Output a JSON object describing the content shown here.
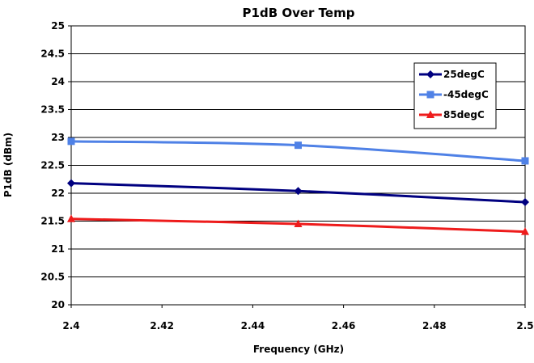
{
  "chart_data": {
    "type": "line",
    "title": "P1dB Over Temp",
    "xlabel": "Frequency (GHz)",
    "ylabel": "P1dB (dBm)",
    "xlim": [
      2.4,
      2.5
    ],
    "ylim": [
      20,
      25
    ],
    "x_ticks": [
      "2.4",
      "2.42",
      "2.44",
      "2.46",
      "2.48",
      "2.5"
    ],
    "y_ticks": [
      "20",
      "20.5",
      "21",
      "21.5",
      "22",
      "22.5",
      "23",
      "23.5",
      "24",
      "24.5",
      "25"
    ],
    "grid": {
      "horizontal": true,
      "vertical": false
    },
    "legend_position": "top-right",
    "series": [
      {
        "name": "25degC",
        "color": "#000080",
        "marker": "diamond",
        "x": [
          2.4,
          2.45,
          2.5
        ],
        "values": [
          22.18,
          22.04,
          21.84
        ]
      },
      {
        "name": "-45degC",
        "color": "#4f81e6",
        "marker": "square",
        "x": [
          2.4,
          2.45,
          2.5
        ],
        "values": [
          22.93,
          22.86,
          22.58
        ]
      },
      {
        "name": "85degC",
        "color": "#ee1c1c",
        "marker": "triangle",
        "x": [
          2.4,
          2.45,
          2.5
        ],
        "values": [
          21.54,
          21.45,
          21.31
        ]
      }
    ]
  }
}
